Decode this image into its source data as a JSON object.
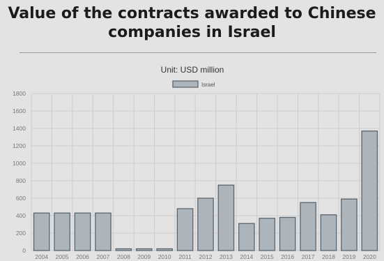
{
  "title": "Value of the contracts awarded to Chinese companies in Israel",
  "chart_data": {
    "type": "bar",
    "title": "Value of the contracts awarded to Chinese companies in Israel",
    "subtitle": "Unit: USD million",
    "xlabel": "",
    "ylabel": "",
    "categories": [
      "2004",
      "2005",
      "2006",
      "2007",
      "2008",
      "2009",
      "2010",
      "2011",
      "2012",
      "2013",
      "2014",
      "2015",
      "2016",
      "2017",
      "2018",
      "2019",
      "2020"
    ],
    "series": [
      {
        "name": "Israel",
        "values": [
          430,
          430,
          430,
          430,
          20,
          20,
          20,
          480,
          600,
          750,
          310,
          370,
          380,
          550,
          410,
          590,
          1370
        ]
      }
    ],
    "ylim": [
      0,
      1800
    ],
    "yticks": [
      0,
      200,
      400,
      600,
      800,
      1000,
      1200,
      1400,
      1600,
      1800
    ],
    "grid": true,
    "legend_position": "top-center",
    "colors": {
      "bar_fill": "#adb5ba",
      "bar_stroke": "#5a6670",
      "grid": "#cdcdcd",
      "background": "#e3e3e3"
    }
  }
}
